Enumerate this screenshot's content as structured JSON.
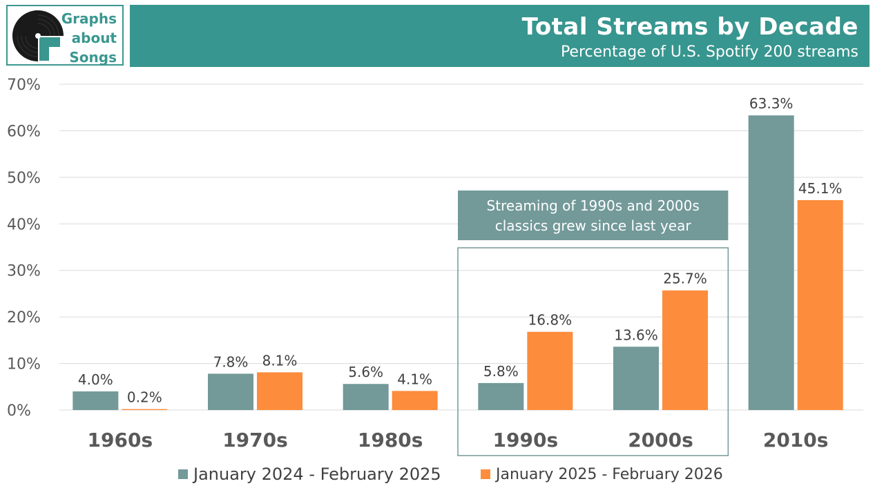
{
  "logo": {
    "line1": "Graphs",
    "line2": "about",
    "line3": "Songs",
    "icon": "vinyl-record-icon"
  },
  "header": {
    "title": "Total Streams by Decade",
    "subtitle": "Percentage of U.S. Spotify 200 streams"
  },
  "colors": {
    "teal": "#37968f",
    "series1": "#739999",
    "series2": "#fd8c3c",
    "grid": "#d9d9d9",
    "axis_text": "#595959",
    "label_text": "#404040",
    "callout_fill": "#739999",
    "callout_border": "#739999"
  },
  "chart_data": {
    "type": "bar",
    "title": "Total Streams by Decade",
    "subtitle": "Percentage of U.S. Spotify 200 streams",
    "categories": [
      "1960s",
      "1970s",
      "1980s",
      "1990s",
      "2000s",
      "2010s"
    ],
    "series": [
      {
        "name": "January 2024 - February 2025",
        "values": [
          4.0,
          7.8,
          5.6,
          5.8,
          13.6,
          63.3
        ],
        "labels": [
          "4.0%",
          "7.8%",
          "5.6%",
          "5.8%",
          "13.6%",
          "63.3%"
        ]
      },
      {
        "name": "January 2025 - February 2026",
        "values": [
          0.2,
          8.1,
          4.1,
          16.8,
          25.7,
          45.1
        ],
        "labels": [
          "0.2%",
          "8.1%",
          "4.1%",
          "16.8%",
          "25.7%",
          "45.1%"
        ]
      }
    ],
    "ylim": [
      0,
      70
    ],
    "yticks": [
      0,
      10,
      20,
      30,
      40,
      50,
      60,
      70
    ],
    "ytick_labels": [
      "0%",
      "10%",
      "20%",
      "30%",
      "40%",
      "50%",
      "60%",
      "70%"
    ],
    "xlabel": "",
    "ylabel": "",
    "grid": true,
    "legend": "bottom-center",
    "annotation": {
      "line1": "Streaming of 1990s and 2000s",
      "line2": "classics grew since last year",
      "categories": [
        "1990s",
        "2000s"
      ]
    }
  }
}
